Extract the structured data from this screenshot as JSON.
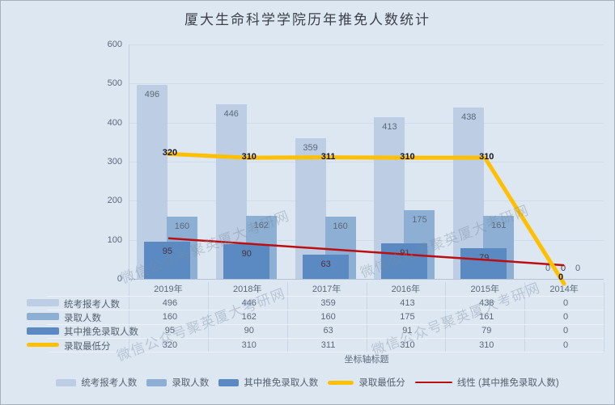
{
  "title": "厦大生命科学学院历年推免人数统计",
  "watermark_text": "微信公众号聚英厦大考研网",
  "colors": {
    "background": "#dce7f2",
    "bar_light": "#bdcde3",
    "bar_medium": "#8cafd3",
    "bar_dark": "#5a8ac1",
    "line_yellow": "#ffc003",
    "line_red": "#bb0e10",
    "gridline": "#cfdbe9",
    "text_gray": "#5b6878"
  },
  "chart_data": {
    "type": "bar",
    "title": "厦大生命科学学院历年推免人数统计",
    "categories": [
      "2019年",
      "2018年",
      "2017年",
      "2016年",
      "2015年",
      "2014年"
    ],
    "series": [
      {
        "name": "统考报考人数",
        "type": "bar",
        "color": "#bdcde3",
        "values": [
          496,
          446,
          359,
          413,
          438,
          0
        ]
      },
      {
        "name": "录取人数",
        "type": "bar",
        "color": "#8cafd3",
        "values": [
          160,
          162,
          160,
          175,
          161,
          0
        ]
      },
      {
        "name": "其中推免录取人数",
        "type": "bar",
        "color": "#5a8ac1",
        "values": [
          95,
          90,
          63,
          91,
          79,
          0
        ]
      },
      {
        "name": "录取最低分",
        "type": "line",
        "color": "#ffc003",
        "values": [
          320,
          310,
          311,
          310,
          310,
          0
        ]
      },
      {
        "name": "线性 (其中推免录取人数)",
        "type": "trendline",
        "color": "#bb0e10",
        "endpoint_values": [
          104,
          35
        ]
      }
    ],
    "xlabel": "坐标轴标题",
    "ylabel": "",
    "ylim": [
      0,
      600
    ],
    "ytick_step": 100,
    "grid": true,
    "legend_position": "bottom",
    "show_data_table": true
  }
}
